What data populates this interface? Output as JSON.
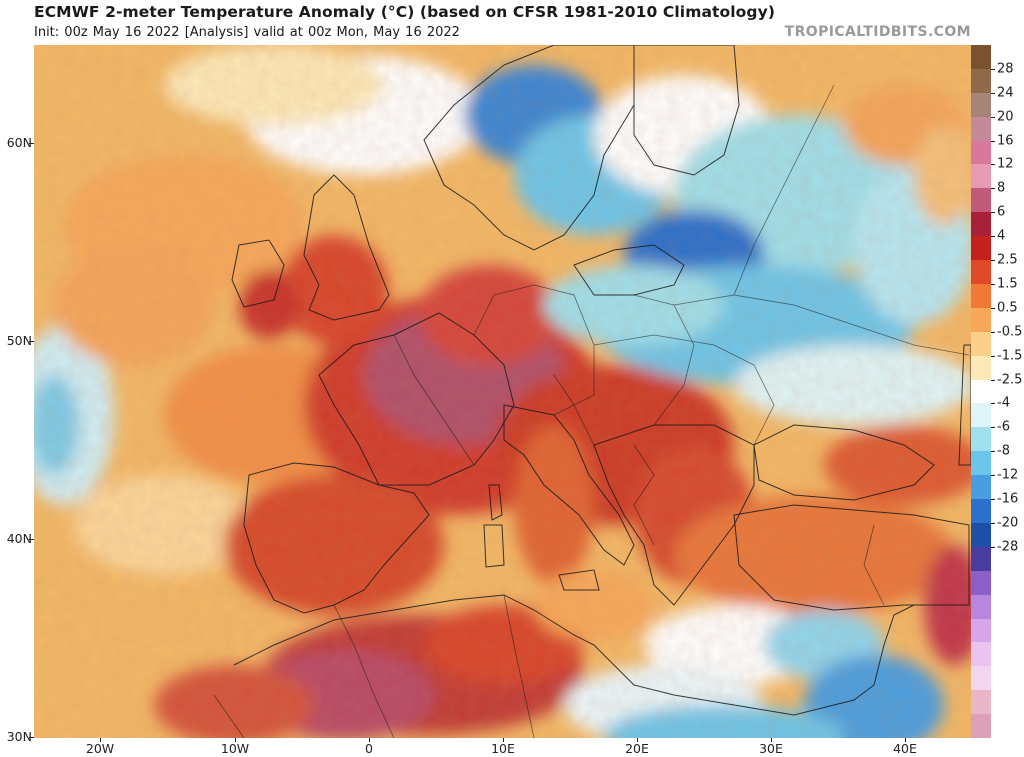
{
  "header": {
    "title": "ECMWF 2-meter Temperature Anomaly (°C) (based on CFSR 1981-2010 Climatology)",
    "subtitle": "Init: 00z May 16 2022   [Analysis]   valid at 00z Mon, May 16 2022",
    "brand": "TROPICALTIDBITS.COM"
  },
  "axes": {
    "lat_labels": [
      "60N",
      "50N",
      "40N",
      "30N"
    ],
    "lon_labels": [
      "20W",
      "10W",
      "0",
      "10E",
      "20E",
      "30E",
      "40E"
    ]
  },
  "colorbar": {
    "labels": [
      "28",
      "24",
      "20",
      "16",
      "12",
      "8",
      "6",
      "4",
      "2.5",
      "1.5",
      "0.5",
      "-0.5",
      "-1.5",
      "-2.5",
      "-4",
      "-6",
      "-8",
      "-12",
      "-16",
      "-20",
      "-28"
    ],
    "colors": [
      "#7a5230",
      "#8f6a4a",
      "#a7847a",
      "#c48a99",
      "#d8789a",
      "#e79ab4",
      "#c05a7a",
      "#a8203a",
      "#c4201e",
      "#e0482a",
      "#f07a35",
      "#f7a85a",
      "#fbd08a",
      "#fde9b8",
      "#ffffff",
      "#dff5f8",
      "#9fe0ec",
      "#6cc6ea",
      "#4a9ee0",
      "#2a70cc",
      "#1d4fa8",
      "#4a3ba0",
      "#8a5fc8",
      "#b886de",
      "#d7a6ea",
      "#eac4ef",
      "#f2d6ef",
      "#e9b6c8",
      "#dca0b8"
    ]
  }
}
